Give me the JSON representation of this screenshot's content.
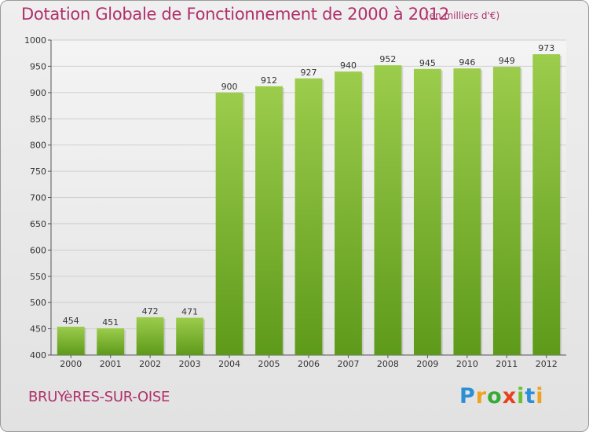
{
  "header": {
    "title": "Dotation Globale de Fonctionnement de 2000 à 2012",
    "unit": "(en milliers d'€)"
  },
  "footer": {
    "town": "BRUYèRES-SUR-OISE",
    "logo_letters": [
      "P",
      "r",
      "o",
      "x",
      "i",
      "t",
      "i"
    ]
  },
  "colors": {
    "title": "#b0306a",
    "bar_top": "#9ccc4c",
    "bar_bottom": "#5e9a1a",
    "grid": "#cfcfcf"
  },
  "chart_data": {
    "type": "bar",
    "categories": [
      "2000",
      "2001",
      "2002",
      "2003",
      "2004",
      "2005",
      "2006",
      "2007",
      "2008",
      "2009",
      "2010",
      "2011",
      "2012"
    ],
    "values": [
      454,
      451,
      472,
      471,
      900,
      912,
      927,
      940,
      952,
      945,
      946,
      949,
      973
    ],
    "title": "Dotation Globale de Fonctionnement de 2000 à 2012",
    "subtitle": "(en milliers d'€)",
    "xlabel": "",
    "ylabel": "",
    "ylim": [
      400,
      1000
    ],
    "yticks": [
      400,
      450,
      500,
      550,
      600,
      650,
      700,
      750,
      800,
      850,
      900,
      950,
      1000
    ],
    "grid": true,
    "data_labels": true
  }
}
